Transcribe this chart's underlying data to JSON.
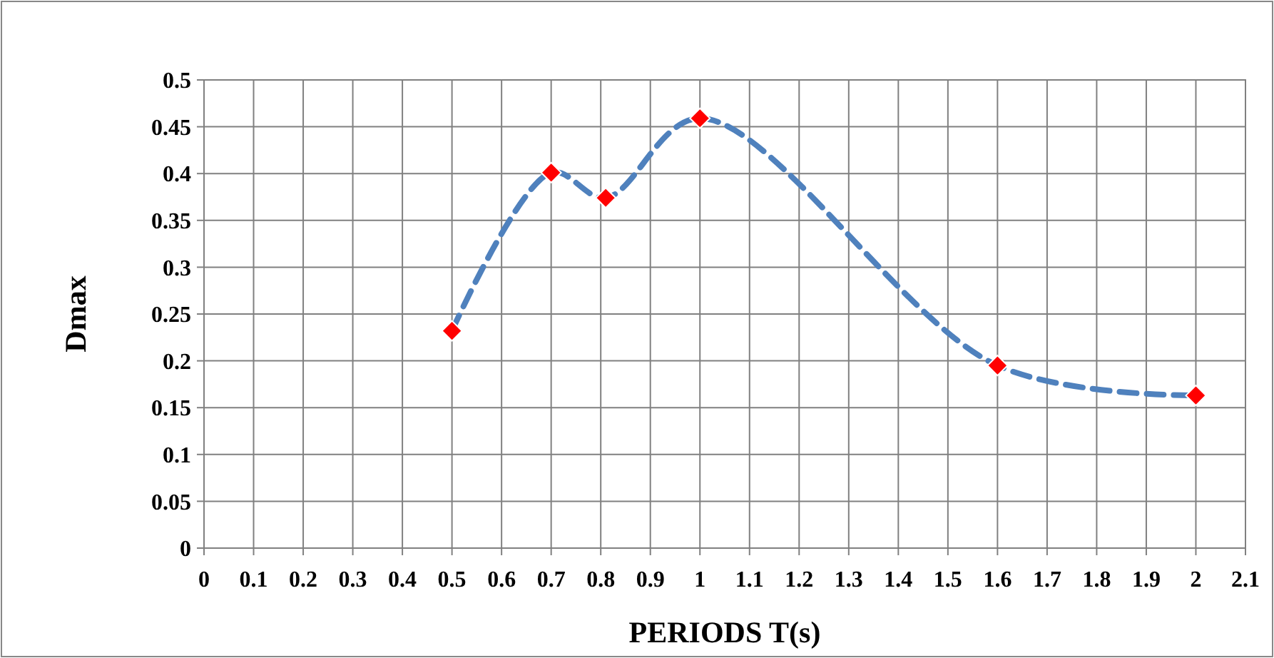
{
  "chart_data": {
    "type": "line",
    "xlabel": "PERIODS T(s)",
    "ylabel": "Dmax",
    "x": [
      0.5,
      0.7,
      0.81,
      1.0,
      1.6,
      2.0
    ],
    "series": [
      {
        "color": "#4f81bd",
        "colors": [
          "#ff0000",
          "#ff0000",
          "#ff0000",
          "#ff0000",
          "#ff0000",
          "#ff0000"
        ],
        "values": [
          0.232,
          0.401,
          0.374,
          0.459,
          0.195,
          0.163
        ]
      }
    ],
    "xlim": [
      0,
      2.1
    ],
    "xticks": [
      0,
      0.1,
      0.2,
      0.3,
      0.4,
      0.5,
      0.6,
      0.7,
      0.8,
      0.9,
      1,
      1.1,
      1.2,
      1.3,
      1.4,
      1.5,
      1.6,
      1.7,
      1.8,
      1.9,
      2,
      2.1
    ],
    "ylim": [
      0,
      0.5
    ],
    "yticks": [
      0,
      0.05,
      0.1,
      0.15,
      0.2,
      0.25,
      0.3,
      0.35,
      0.4,
      0.45,
      0.5
    ],
    "grid": true,
    "marker": "diamond",
    "line_style": "dashed"
  }
}
